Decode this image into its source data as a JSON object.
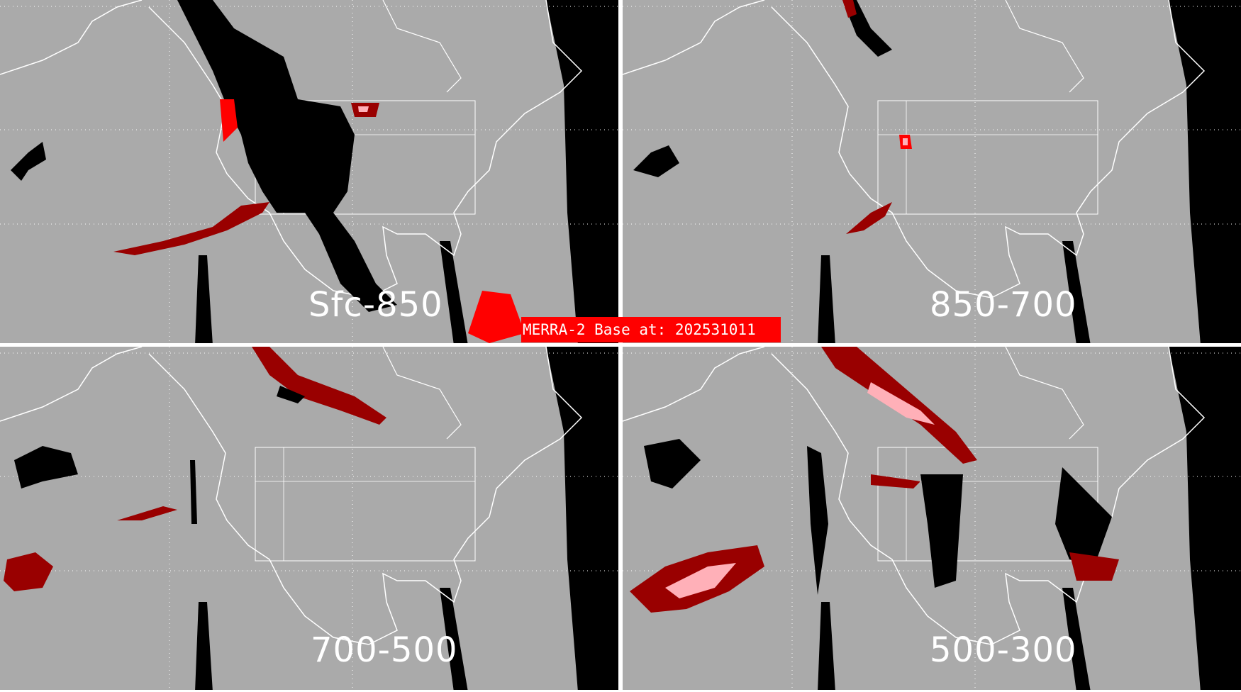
{
  "panels": [
    {
      "label": "Sfc-850"
    },
    {
      "label": "850-700"
    },
    {
      "label": "700-500"
    },
    {
      "label": "500-300"
    }
  ],
  "base_label": "MERRA-2 Base at: 202531011",
  "colors": {
    "background": "#aaaaaa",
    "night": "#000000",
    "dark_red": "#990000",
    "red": "#ff0000",
    "pink": "#ffb0b8",
    "coastlines": "#ffffff",
    "label_box": "#ff0000"
  }
}
